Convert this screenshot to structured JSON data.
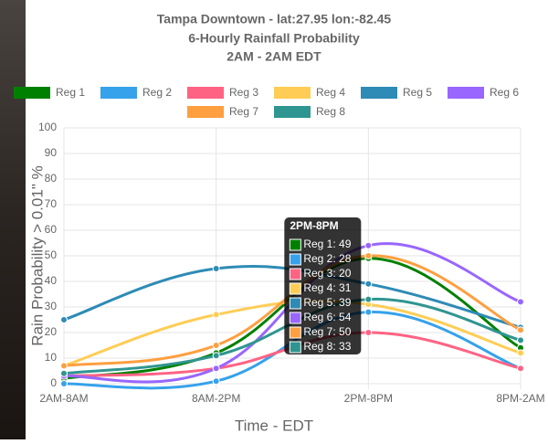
{
  "chart_data": {
    "type": "line",
    "title": [
      "Tampa Downtown - lat:27.95  lon:-82.45",
      "6-Hourly Rainfall Probability",
      "2AM - 2AM EDT"
    ],
    "x_label": "Time - EDT",
    "y_label": "Rain Probability > 0.01\" %",
    "categories": [
      "2AM-8AM",
      "8AM-2PM",
      "2PM-8PM",
      "8PM-2AM"
    ],
    "series": [
      {
        "name": "Reg 1",
        "color": "#008000",
        "values": [
          2,
          12,
          49,
          14
        ]
      },
      {
        "name": "Reg 2",
        "color": "#36a2eb",
        "values": [
          0,
          1,
          28,
          6
        ]
      },
      {
        "name": "Reg 3",
        "color": "#ff6384",
        "values": [
          3,
          6,
          20,
          6
        ]
      },
      {
        "name": "Reg 4",
        "color": "#ffcd56",
        "values": [
          7,
          27,
          31,
          12
        ]
      },
      {
        "name": "Reg 5",
        "color": "#2e8bb5",
        "values": [
          25,
          45,
          39,
          22
        ]
      },
      {
        "name": "Reg 6",
        "color": "#9966ff",
        "values": [
          3,
          6,
          54,
          32
        ]
      },
      {
        "name": "Reg 7",
        "color": "#ff9f40",
        "values": [
          7,
          15,
          50,
          21
        ]
      },
      {
        "name": "Reg 8",
        "color": "#2f9590",
        "values": [
          4,
          11,
          33,
          17
        ]
      }
    ],
    "ylim": [
      0,
      100
    ],
    "yticks": [
      0,
      10,
      20,
      30,
      40,
      50,
      60,
      70,
      80,
      90,
      100
    ],
    "grid": true,
    "tooltip": {
      "category": 2,
      "items": [
        "Reg 1: 49",
        "Reg 2: 28",
        "Reg 3: 20",
        "Reg 4: 31",
        "Reg 5: 39",
        "Reg 6: 54",
        "Reg 7: 50",
        "Reg 8: 33"
      ]
    }
  }
}
